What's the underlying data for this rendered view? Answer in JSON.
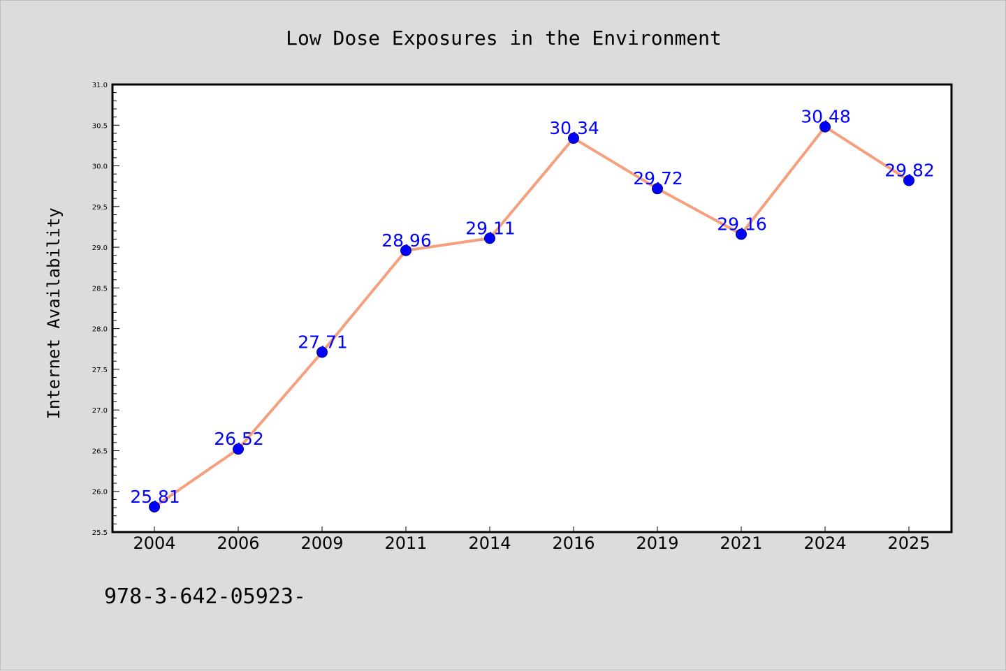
{
  "footer_text": "978-3-642-05923-",
  "colors": {
    "background": "#dcdcdc",
    "plot_background": "#ffffff",
    "line": "#f4a07f",
    "marker": "#0000ff",
    "data_label": "#0000ff"
  },
  "chart_data": {
    "type": "line",
    "title": "Low Dose Exposures in the Environment",
    "xlabel": "",
    "ylabel": "Internet Availability",
    "categories": [
      "2004",
      "2006",
      "2009",
      "2011",
      "2014",
      "2016",
      "2019",
      "2021",
      "2024",
      "2025"
    ],
    "series": [
      {
        "values": [
          25.81,
          26.52,
          27.71,
          28.96,
          29.11,
          30.34,
          29.72,
          29.16,
          30.48,
          29.82
        ],
        "data_labels": [
          "25.81",
          "26.52",
          "27.71",
          "28.96",
          "29.11",
          "30.34",
          "29.72",
          "29.16",
          "30.48",
          "29.82"
        ]
      }
    ],
    "ylim": [
      25.5,
      31.0
    ],
    "yticks": [
      "25.5",
      "26.0",
      "26.5",
      "27.0",
      "27.5",
      "28.0",
      "28.5",
      "29.0",
      "29.5",
      "30.0",
      "30.5",
      "31.0"
    ],
    "grid": false,
    "legend": "none"
  }
}
